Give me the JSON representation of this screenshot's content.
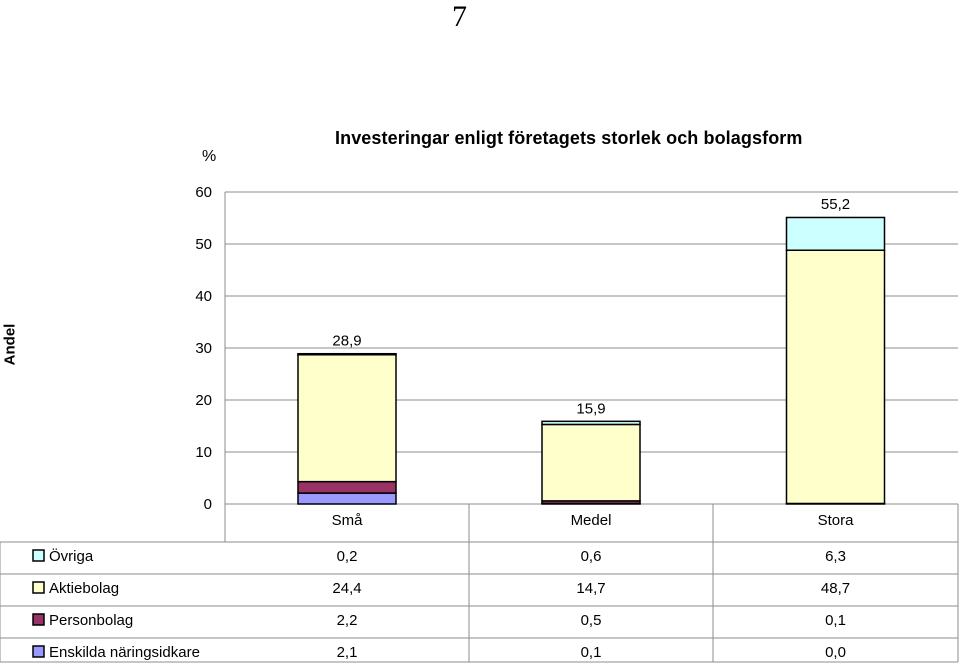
{
  "page_number": "7",
  "chart_data": {
    "type": "bar",
    "stacked": true,
    "title": "Investeringar enligt företagets storlek och bolagsform",
    "unit": "%",
    "ylabel": "Andel",
    "ylim": [
      0,
      60
    ],
    "yticks": [
      "0",
      "10",
      "20",
      "30",
      "40",
      "50",
      "60"
    ],
    "grid": true,
    "categories": [
      "Små",
      "Medel",
      "Stora"
    ],
    "totals": [
      "28,9",
      "15,9",
      "55,2"
    ],
    "totals_values": [
      28.9,
      15.9,
      55.2
    ],
    "series": [
      {
        "name": "Övriga",
        "color": "#ccffff",
        "values": [
          0.2,
          0.6,
          6.3
        ],
        "labels": [
          "0,2",
          "0,6",
          "6,3"
        ]
      },
      {
        "name": "Aktiebolag",
        "color": "#ffffcc",
        "values": [
          24.4,
          14.7,
          48.7
        ],
        "labels": [
          "24,4",
          "14,7",
          "48,7"
        ]
      },
      {
        "name": "Personbolag",
        "color": "#993366",
        "values": [
          2.2,
          0.5,
          0.1
        ],
        "labels": [
          "2,2",
          "0,5",
          "0,1"
        ]
      },
      {
        "name": "Enskilda näringsidkare",
        "color": "#9999ff",
        "values": [
          2.1,
          0.1,
          0.0
        ],
        "labels": [
          "2,1",
          "0,1",
          "0,0"
        ]
      }
    ]
  }
}
